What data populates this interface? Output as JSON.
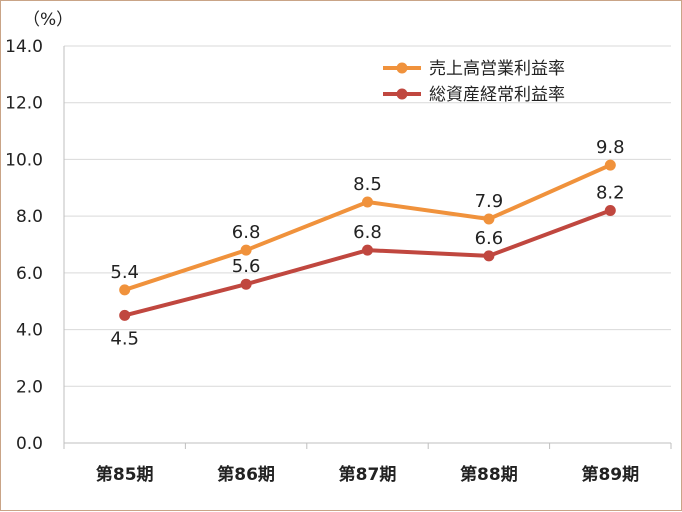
{
  "chart_data": {
    "type": "line",
    "unit_label": "（%）",
    "categories": [
      "第85期",
      "第86期",
      "第87期",
      "第88期",
      "第89期"
    ],
    "ylim": [
      0,
      14
    ],
    "yticks": [
      "0.0",
      "2.0",
      "4.0",
      "6.0",
      "8.0",
      "10.0",
      "12.0",
      "14.0"
    ],
    "grid": true,
    "legend_position": "top-right",
    "series": [
      {
        "name": "売上高営業利益率",
        "color": "#f0923c",
        "values": [
          5.4,
          6.8,
          8.5,
          7.9,
          9.8
        ],
        "labels": [
          "5.4",
          "6.8",
          "8.5",
          "7.9",
          "9.8"
        ]
      },
      {
        "name": "総資産経常利益率",
        "color": "#c0473f",
        "values": [
          4.5,
          5.6,
          6.8,
          6.6,
          8.2
        ],
        "labels": [
          "4.5",
          "5.6",
          "6.8",
          "6.6",
          "8.2"
        ]
      }
    ]
  }
}
